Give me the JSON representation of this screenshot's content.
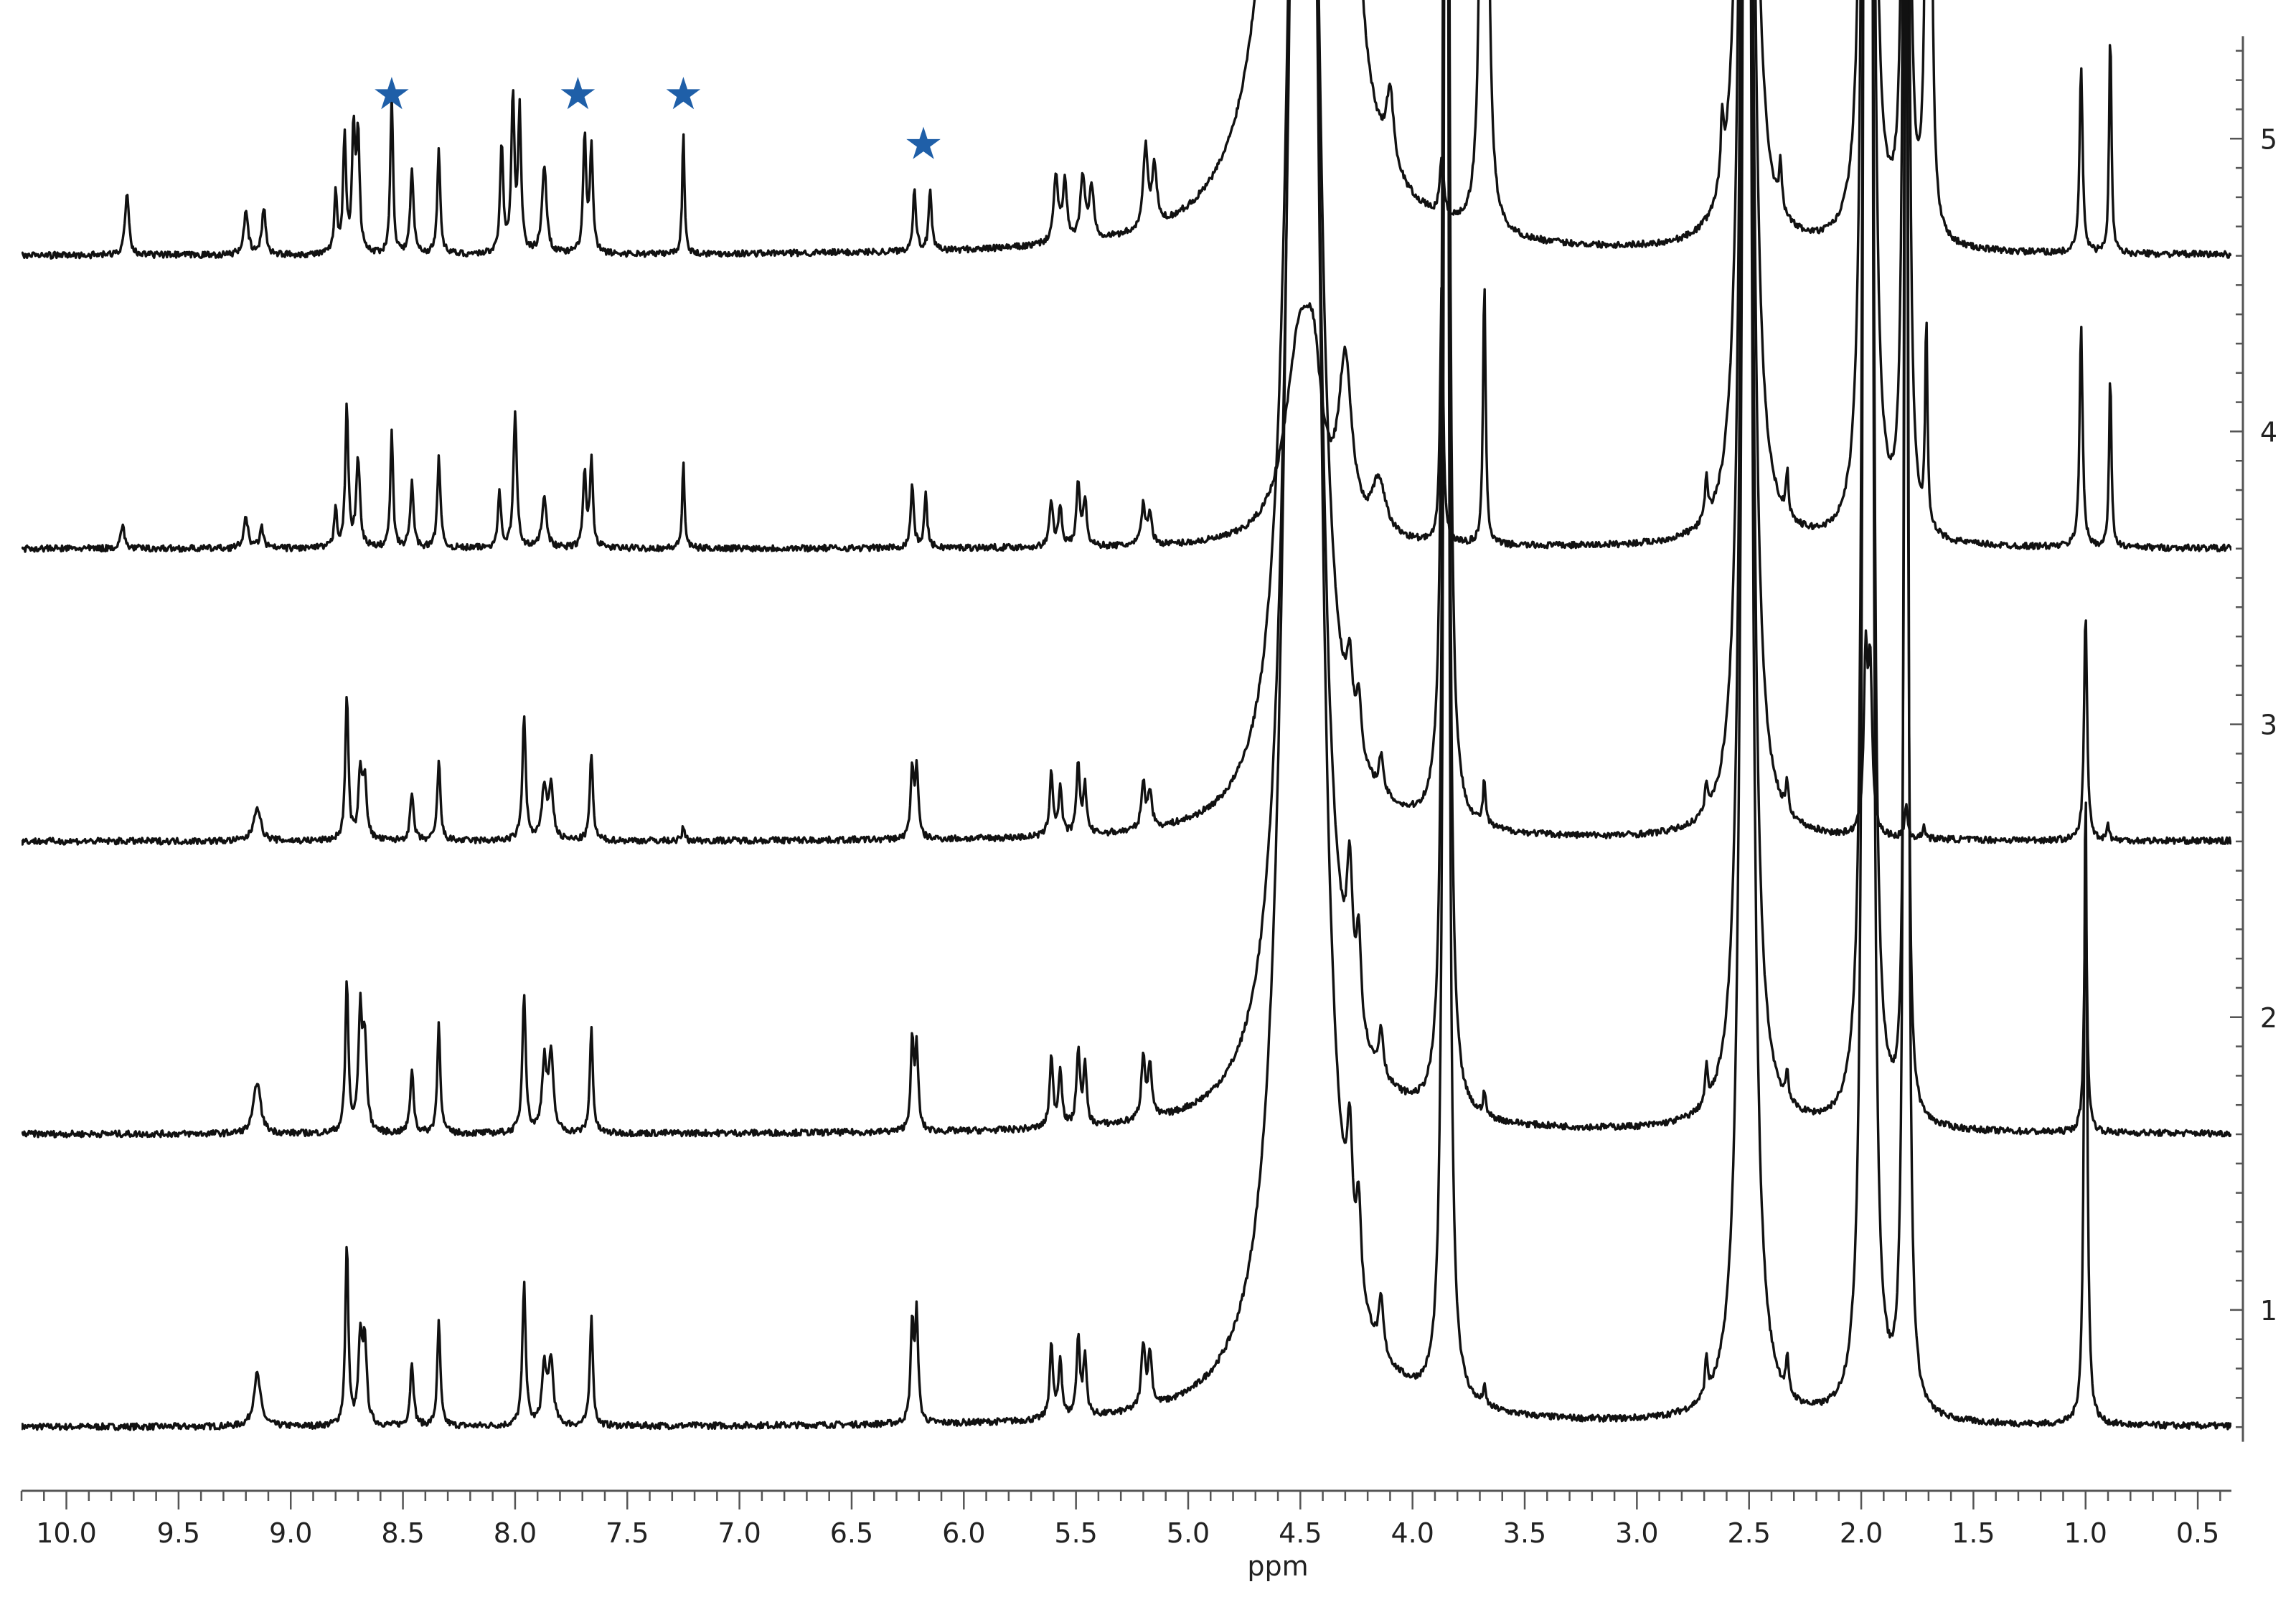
{
  "chart_data": {
    "type": "line",
    "title": "",
    "xlabel": "ppm",
    "x_reversed": true,
    "xlim": [
      10.2,
      0.35
    ],
    "x_ticks": [
      10.0,
      9.5,
      9.0,
      8.5,
      8.0,
      7.5,
      7.0,
      6.5,
      6.0,
      5.5,
      5.0,
      4.5,
      4.0,
      3.5,
      3.0,
      2.5,
      2.0,
      1.5,
      1.0,
      0.5
    ],
    "x_tick_labels": [
      "10.0",
      "9.5",
      "9.0",
      "8.5",
      "8.0",
      "7.5",
      "7.0",
      "6.5",
      "6.0",
      "5.5",
      "5.0",
      "4.5",
      "4.0",
      "3.5",
      "3.0",
      "2.5",
      "2.0",
      "1.5",
      "1.0",
      "0.5"
    ],
    "ylim": [
      0.5,
      5.4
    ],
    "y_ticks": [
      1,
      2,
      3,
      4,
      5
    ],
    "y_tick_labels": [
      "1",
      "2",
      "3",
      "4",
      "5"
    ],
    "y_axis_side": "right",
    "grid": false,
    "series_style": {
      "color": "#111111"
    },
    "star_color": "#1f5fa8",
    "star_symbol": "★",
    "star_positions": [
      8.55,
      7.72,
      7.25,
      6.18
    ],
    "series": [
      {
        "offset": 0.6,
        "peaks": [
          [
            9.15,
            0.18,
            0.018
          ],
          [
            8.75,
            0.62,
            0.008
          ],
          [
            8.69,
            0.28,
            0.01
          ],
          [
            8.67,
            0.28,
            0.01
          ],
          [
            8.46,
            0.22,
            0.009
          ],
          [
            8.34,
            0.36,
            0.008
          ],
          [
            7.96,
            0.48,
            0.009
          ],
          [
            7.87,
            0.2,
            0.012
          ],
          [
            7.84,
            0.22,
            0.012
          ],
          [
            7.66,
            0.38,
            0.008
          ],
          [
            6.23,
            0.34,
            0.008
          ],
          [
            6.21,
            0.36,
            0.008
          ],
          [
            5.61,
            0.25,
            0.009
          ],
          [
            5.57,
            0.2,
            0.009
          ],
          [
            5.49,
            0.27,
            0.009
          ],
          [
            5.46,
            0.2,
            0.009
          ],
          [
            5.2,
            0.22,
            0.01
          ],
          [
            5.17,
            0.18,
            0.01
          ],
          [
            4.5,
            8.0,
            0.06
          ],
          [
            4.44,
            2.0,
            0.04
          ],
          [
            4.28,
            0.4,
            0.015
          ],
          [
            4.24,
            0.3,
            0.012
          ],
          [
            4.14,
            0.18,
            0.012
          ],
          [
            3.85,
            9.0,
            0.01
          ],
          [
            3.68,
            0.06,
            0.007
          ],
          [
            2.69,
            0.13,
            0.007
          ],
          [
            2.51,
            9.0,
            0.02
          ],
          [
            2.33,
            0.12,
            0.007
          ],
          [
            1.98,
            9.0,
            0.01
          ],
          [
            1.96,
            9.0,
            0.01
          ],
          [
            1.8,
            9.0,
            0.008
          ],
          [
            1.0,
            2.2,
            0.008
          ]
        ]
      },
      {
        "offset": 1.6,
        "peaks": [
          [
            9.15,
            0.18,
            0.018
          ],
          [
            8.75,
            0.52,
            0.008
          ],
          [
            8.69,
            0.4,
            0.01
          ],
          [
            8.67,
            0.3,
            0.01
          ],
          [
            8.46,
            0.22,
            0.009
          ],
          [
            8.34,
            0.38,
            0.008
          ],
          [
            7.96,
            0.48,
            0.009
          ],
          [
            7.87,
            0.24,
            0.012
          ],
          [
            7.84,
            0.26,
            0.012
          ],
          [
            7.66,
            0.36,
            0.008
          ],
          [
            6.23,
            0.3,
            0.008
          ],
          [
            6.21,
            0.28,
            0.008
          ],
          [
            5.61,
            0.24,
            0.009
          ],
          [
            5.57,
            0.2,
            0.009
          ],
          [
            5.49,
            0.26,
            0.009
          ],
          [
            5.46,
            0.2,
            0.009
          ],
          [
            5.2,
            0.22,
            0.01
          ],
          [
            5.17,
            0.18,
            0.01
          ],
          [
            4.5,
            6.0,
            0.06
          ],
          [
            4.44,
            1.8,
            0.04
          ],
          [
            4.28,
            0.45,
            0.015
          ],
          [
            4.24,
            0.32,
            0.012
          ],
          [
            4.14,
            0.16,
            0.012
          ],
          [
            3.85,
            9.0,
            0.01
          ],
          [
            3.68,
            0.08,
            0.007
          ],
          [
            2.69,
            0.12,
            0.007
          ],
          [
            2.51,
            9.0,
            0.02
          ],
          [
            2.33,
            0.1,
            0.007
          ],
          [
            1.98,
            9.0,
            0.01
          ],
          [
            1.96,
            9.0,
            0.01
          ],
          [
            1.8,
            5.0,
            0.008
          ],
          [
            1.0,
            0.83,
            0.008
          ]
        ]
      },
      {
        "offset": 2.6,
        "peaks": [
          [
            9.15,
            0.12,
            0.018
          ],
          [
            8.75,
            0.5,
            0.008
          ],
          [
            8.69,
            0.22,
            0.01
          ],
          [
            8.67,
            0.2,
            0.01
          ],
          [
            8.46,
            0.16,
            0.009
          ],
          [
            8.34,
            0.28,
            0.008
          ],
          [
            7.96,
            0.42,
            0.009
          ],
          [
            7.87,
            0.18,
            0.012
          ],
          [
            7.84,
            0.18,
            0.012
          ],
          [
            7.66,
            0.3,
            0.008
          ],
          [
            7.25,
            0.05,
            0.006
          ],
          [
            6.23,
            0.24,
            0.008
          ],
          [
            6.21,
            0.24,
            0.008
          ],
          [
            5.61,
            0.22,
            0.009
          ],
          [
            5.57,
            0.16,
            0.009
          ],
          [
            5.49,
            0.24,
            0.009
          ],
          [
            5.46,
            0.16,
            0.009
          ],
          [
            5.2,
            0.16,
            0.01
          ],
          [
            5.17,
            0.13,
            0.01
          ],
          [
            4.5,
            5.0,
            0.06
          ],
          [
            4.44,
            1.5,
            0.04
          ],
          [
            4.28,
            0.24,
            0.015
          ],
          [
            4.24,
            0.2,
            0.012
          ],
          [
            4.14,
            0.12,
            0.012
          ],
          [
            3.85,
            9.0,
            0.01
          ],
          [
            3.68,
            0.15,
            0.007
          ],
          [
            2.69,
            0.1,
            0.007
          ],
          [
            2.51,
            9.0,
            0.02
          ],
          [
            2.33,
            0.1,
            0.007
          ],
          [
            1.98,
            0.6,
            0.01
          ],
          [
            1.96,
            0.55,
            0.01
          ],
          [
            1.8,
            0.11,
            0.008
          ],
          [
            1.72,
            0.05,
            0.006
          ],
          [
            1.0,
            0.78,
            0.008
          ],
          [
            0.9,
            0.06,
            0.006
          ]
        ]
      },
      {
        "offset": 3.6,
        "peaks": [
          [
            9.75,
            0.08,
            0.01
          ],
          [
            9.2,
            0.1,
            0.012
          ],
          [
            9.13,
            0.07,
            0.01
          ],
          [
            8.8,
            0.14,
            0.007
          ],
          [
            8.75,
            0.48,
            0.008
          ],
          [
            8.7,
            0.3,
            0.01
          ],
          [
            8.55,
            0.4,
            0.007
          ],
          [
            8.46,
            0.22,
            0.009
          ],
          [
            8.34,
            0.32,
            0.008
          ],
          [
            8.07,
            0.2,
            0.008
          ],
          [
            8.0,
            0.46,
            0.009
          ],
          [
            7.87,
            0.18,
            0.012
          ],
          [
            7.69,
            0.26,
            0.008
          ],
          [
            7.66,
            0.3,
            0.008
          ],
          [
            7.25,
            0.3,
            0.006
          ],
          [
            6.23,
            0.22,
            0.008
          ],
          [
            6.17,
            0.18,
            0.008
          ],
          [
            5.61,
            0.16,
            0.009
          ],
          [
            5.57,
            0.14,
            0.009
          ],
          [
            5.49,
            0.22,
            0.009
          ],
          [
            5.46,
            0.16,
            0.009
          ],
          [
            5.2,
            0.14,
            0.01
          ],
          [
            5.17,
            0.11,
            0.01
          ],
          [
            4.5,
            0.7,
            0.08
          ],
          [
            4.44,
            0.3,
            0.04
          ],
          [
            4.3,
            0.55,
            0.035
          ],
          [
            4.15,
            0.18,
            0.035
          ],
          [
            3.87,
            0.9,
            0.008
          ],
          [
            3.68,
            0.9,
            0.007
          ],
          [
            2.69,
            0.15,
            0.007
          ],
          [
            2.51,
            9.0,
            0.02
          ],
          [
            2.33,
            0.15,
            0.007
          ],
          [
            1.98,
            9.0,
            0.01
          ],
          [
            1.96,
            9.0,
            0.01
          ],
          [
            1.8,
            9.0,
            0.008
          ],
          [
            1.71,
            0.72,
            0.006
          ],
          [
            1.02,
            0.76,
            0.008
          ],
          [
            0.89,
            0.6,
            0.006
          ]
        ]
      },
      {
        "offset": 4.6,
        "peaks": [
          [
            9.73,
            0.22,
            0.01
          ],
          [
            9.2,
            0.14,
            0.012
          ],
          [
            9.12,
            0.16,
            0.01
          ],
          [
            8.8,
            0.22,
            0.007
          ],
          [
            8.76,
            0.4,
            0.008
          ],
          [
            8.72,
            0.42,
            0.008
          ],
          [
            8.7,
            0.4,
            0.008
          ],
          [
            8.55,
            0.55,
            0.007
          ],
          [
            8.46,
            0.28,
            0.009
          ],
          [
            8.34,
            0.36,
            0.008
          ],
          [
            8.06,
            0.38,
            0.008
          ],
          [
            8.01,
            0.54,
            0.008
          ],
          [
            7.98,
            0.48,
            0.008
          ],
          [
            7.87,
            0.3,
            0.012
          ],
          [
            7.69,
            0.4,
            0.008
          ],
          [
            7.66,
            0.36,
            0.008
          ],
          [
            7.25,
            0.42,
            0.006
          ],
          [
            6.22,
            0.22,
            0.008
          ],
          [
            6.15,
            0.2,
            0.008
          ],
          [
            5.59,
            0.22,
            0.012
          ],
          [
            5.55,
            0.2,
            0.012
          ],
          [
            5.47,
            0.22,
            0.012
          ],
          [
            5.43,
            0.18,
            0.012
          ],
          [
            5.19,
            0.28,
            0.012
          ],
          [
            5.15,
            0.2,
            0.012
          ],
          [
            4.5,
            6.0,
            0.08
          ],
          [
            4.4,
            2.0,
            0.06
          ],
          [
            4.26,
            0.6,
            0.03
          ],
          [
            4.1,
            0.25,
            0.02
          ],
          [
            3.87,
            0.2,
            0.01
          ],
          [
            3.68,
            9.0,
            0.008
          ],
          [
            2.62,
            0.22,
            0.007
          ],
          [
            2.51,
            9.0,
            0.02
          ],
          [
            2.36,
            0.16,
            0.007
          ],
          [
            1.98,
            9.0,
            0.01
          ],
          [
            1.96,
            9.0,
            0.01
          ],
          [
            1.8,
            9.0,
            0.008
          ],
          [
            1.7,
            9.0,
            0.006
          ],
          [
            1.02,
            0.64,
            0.008
          ],
          [
            0.89,
            0.78,
            0.006
          ]
        ]
      }
    ]
  }
}
